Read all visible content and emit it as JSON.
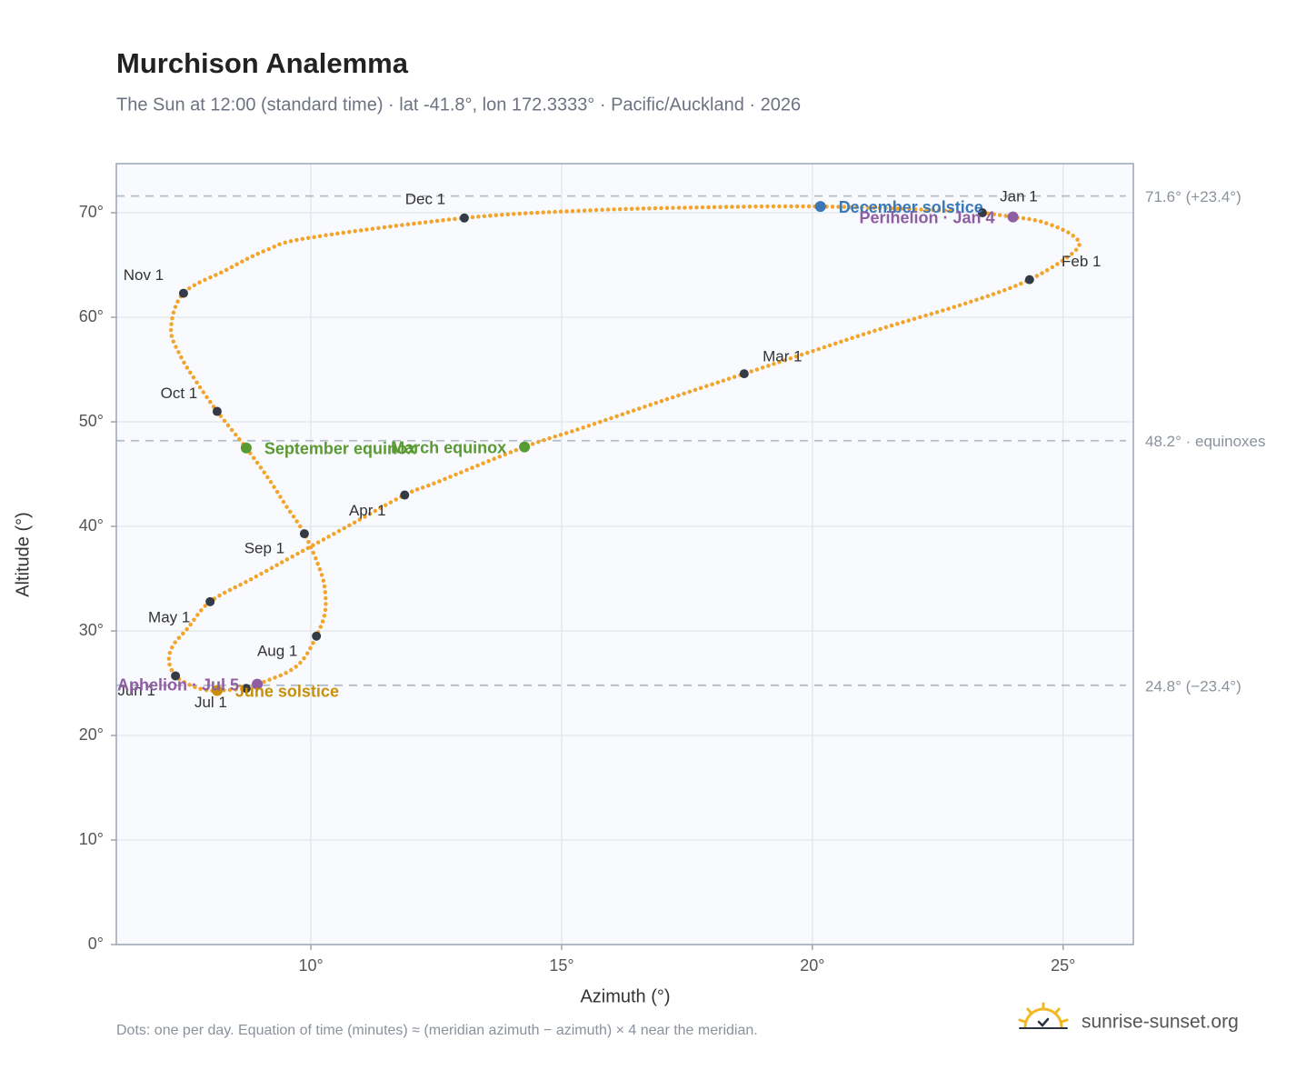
{
  "chart_data": {
    "type": "scatter",
    "title": "Murchison Analemma",
    "subtitle": "The Sun at 12:00 (standard time) · lat -41.8°, lon 172.3333° · Pacific/Auckland · 2026",
    "x_label": "Azimuth (°)",
    "y_label": "Altitude (°)",
    "xlim": [
      6.12,
      26.4
    ],
    "ylim": [
      0,
      74.7
    ],
    "xticks": [
      {
        "value": 10,
        "label": "10°"
      },
      {
        "value": 15,
        "label": "15°"
      },
      {
        "value": 20,
        "label": "20°"
      },
      {
        "value": 25,
        "label": "25°"
      }
    ],
    "yticks": [
      {
        "value": 0,
        "label": "0°"
      },
      {
        "value": 10,
        "label": "10°"
      },
      {
        "value": 20,
        "label": "20°"
      },
      {
        "value": 30,
        "label": "30°"
      },
      {
        "value": 40,
        "label": "40°"
      },
      {
        "value": 50,
        "label": "50°"
      },
      {
        "value": 60,
        "label": "60°"
      },
      {
        "value": 70,
        "label": "70°"
      }
    ],
    "grid": true,
    "series": [
      {
        "color": "#f2a42b",
        "x": [
          23.39,
          24.0,
          24.6,
          25.2,
          25.25,
          24.33,
          23.1,
          21.3,
          19.9,
          18.64,
          17.0,
          15.4,
          14.26,
          12.5,
          11.87,
          10.73,
          9.74,
          8.83,
          7.99,
          7.55,
          7.25,
          7.17,
          7.3,
          7.6,
          7.85,
          8.13,
          8.71,
          8.93,
          9.1,
          9.55,
          9.85,
          10.11,
          10.27,
          10.29,
          10.2,
          9.87,
          9.5,
          9.15,
          8.71,
          8.13,
          7.72,
          7.4,
          7.21,
          7.46,
          8.3,
          9.1,
          9.96,
          13.06,
          15.4,
          17.6,
          20.16,
          22.8
        ],
        "y": [
          70.0,
          69.6,
          69.1,
          67.8,
          66.4,
          63.6,
          61.4,
          58.8,
          56.6,
          54.6,
          52.0,
          49.4,
          47.6,
          44.2,
          43.0,
          40.0,
          37.4,
          35.0,
          32.8,
          30.3,
          28.6,
          27.1,
          25.7,
          24.8,
          24.4,
          24.3,
          24.5,
          24.9,
          25.2,
          26.1,
          27.3,
          29.5,
          31.5,
          33.4,
          35.6,
          39.3,
          42.0,
          44.6,
          47.5,
          51.0,
          53.8,
          56.3,
          58.9,
          62.3,
          64.5,
          66.4,
          67.6,
          69.5,
          70.2,
          70.5,
          70.6,
          70.2
        ]
      }
    ],
    "marker_color": "#343a46",
    "month_markers": [
      {
        "label": "Jan 1",
        "x": 23.39,
        "y": 70.0
      },
      {
        "label": "Feb 1",
        "x": 24.33,
        "y": 63.6
      },
      {
        "label": "Mar 1",
        "x": 18.64,
        "y": 54.6
      },
      {
        "label": "Apr 1",
        "x": 11.87,
        "y": 43.0
      },
      {
        "label": "May 1",
        "x": 7.99,
        "y": 32.8
      },
      {
        "label": "Jun 1",
        "x": 7.3,
        "y": 25.7
      },
      {
        "label": "Jul 1",
        "x": 8.71,
        "y": 24.5
      },
      {
        "label": "Aug 1",
        "x": 10.11,
        "y": 29.5
      },
      {
        "label": "Sep 1",
        "x": 9.87,
        "y": 39.3
      },
      {
        "label": "Oct 1",
        "x": 8.13,
        "y": 51.0
      },
      {
        "label": "Nov 1",
        "x": 7.46,
        "y": 62.3
      },
      {
        "label": "Dec 1",
        "x": 13.06,
        "y": 69.5
      }
    ],
    "events": [
      {
        "label": "December solstice",
        "x": 20.16,
        "y": 70.6,
        "color": "#3b78b8"
      },
      {
        "label": "Perihelion · Jan 4",
        "x": 24.0,
        "y": 69.6,
        "color": "#8e5ea2"
      },
      {
        "label": "March equinox",
        "x": 14.26,
        "y": 47.6,
        "color": "#5a9a32"
      },
      {
        "label": "September equinox",
        "x": 8.71,
        "y": 47.5,
        "color": "#5a9a32"
      },
      {
        "label": "June solstice",
        "x": 8.13,
        "y": 24.3,
        "color": "#c8900a"
      },
      {
        "label": "Aphelion · Jul 5",
        "x": 8.93,
        "y": 24.9,
        "color": "#8e5ea2"
      }
    ],
    "reference_lines": [
      {
        "value": 71.6,
        "label": "71.6° (+23.4°)"
      },
      {
        "value": 48.2,
        "label": "48.2° · equinoxes"
      },
      {
        "value": 24.8,
        "label": "24.8° (−23.4°)"
      }
    ],
    "footnote": "Dots: one per day. Equation of time (minutes) ≈ (meridian azimuth − azimuth) × 4 near the meridian.",
    "brand": "sunrise-sunset.org"
  }
}
